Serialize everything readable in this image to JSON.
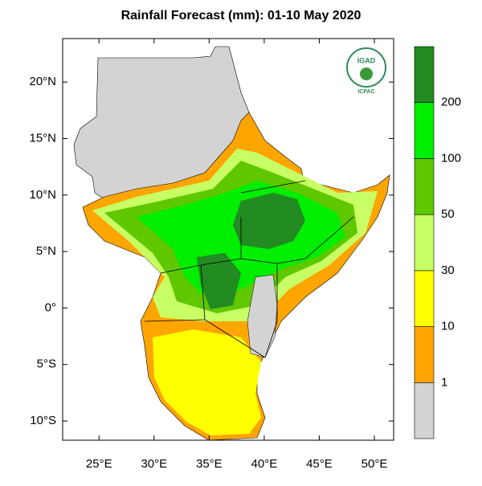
{
  "title": "Rainfall Forecast (mm): 01-10 May 2020",
  "map": {
    "xlim": [
      21.7,
      51.75
    ],
    "ylim": [
      -11.7,
      23.85
    ],
    "xticks": [
      {
        "value": 25,
        "label": "25°E"
      },
      {
        "value": 30,
        "label": "30°E"
      },
      {
        "value": 35,
        "label": "35°E"
      },
      {
        "value": 40,
        "label": "40°E"
      },
      {
        "value": 45,
        "label": "45°E"
      },
      {
        "value": 50,
        "label": "50°E"
      }
    ],
    "yticks": [
      {
        "value": 20,
        "label": "20°N"
      },
      {
        "value": 15,
        "label": "15°N"
      },
      {
        "value": 10,
        "label": "10°N"
      },
      {
        "value": 5,
        "label": "5°N"
      },
      {
        "value": 0,
        "label": "0°"
      },
      {
        "value": -5,
        "label": "5°S"
      },
      {
        "value": -10,
        "label": "10°S"
      }
    ]
  },
  "colorbar": {
    "levels": [
      1,
      10,
      30,
      50,
      100,
      200
    ],
    "colors": [
      "#d3d3d3",
      "#ffa500",
      "#ffff00",
      "#c8ff64",
      "#5fc800",
      "#00ee00",
      "#228b22"
    ]
  },
  "logo": {
    "name": "IGAD",
    "org": "ICPAC"
  }
}
